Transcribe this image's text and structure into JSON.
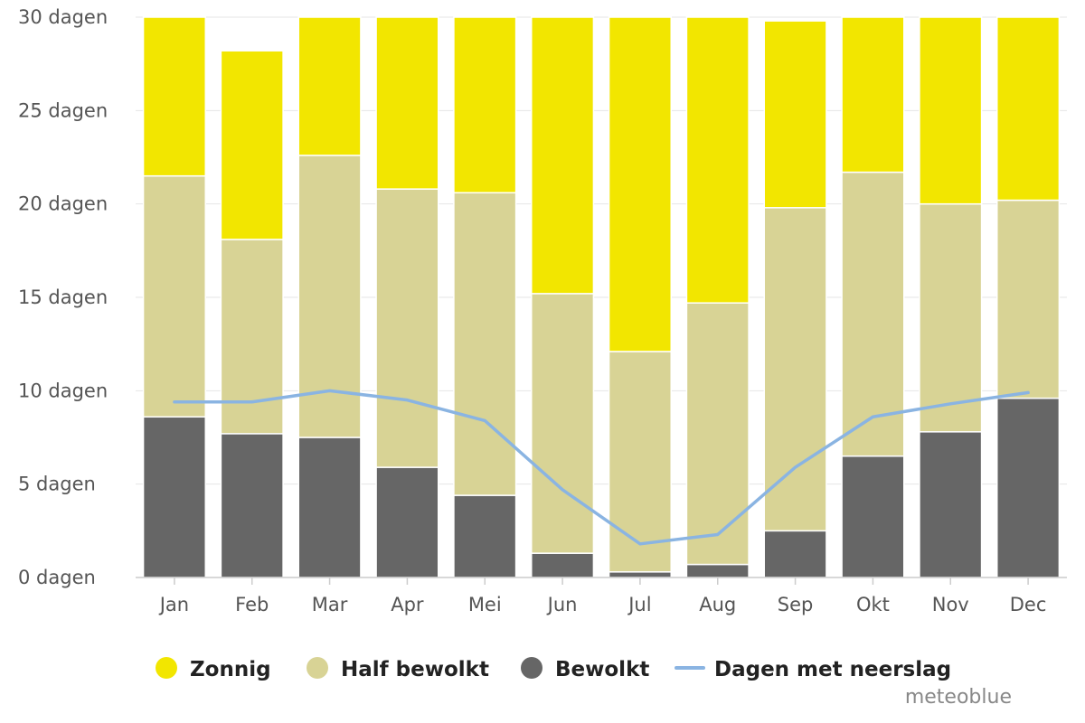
{
  "chart_data": {
    "type": "bar",
    "stacked": true,
    "categories": [
      "Jan",
      "Feb",
      "Mar",
      "Apr",
      "Mei",
      "Jun",
      "Jul",
      "Aug",
      "Sep",
      "Okt",
      "Nov",
      "Dec"
    ],
    "series": [
      {
        "name": "Bewolkt",
        "color": "#666666",
        "values": [
          8.6,
          7.7,
          7.5,
          5.9,
          4.4,
          1.3,
          0.3,
          0.7,
          2.5,
          6.5,
          7.8,
          9.6
        ]
      },
      {
        "name": "Half bewolkt",
        "color": "#d8d395",
        "values": [
          12.9,
          10.4,
          15.1,
          14.9,
          16.2,
          13.9,
          11.8,
          14.0,
          17.3,
          15.2,
          12.2,
          10.6
        ]
      },
      {
        "name": "Zonnig",
        "color": "#f2e600",
        "values": [
          8.5,
          10.1,
          7.4,
          9.2,
          9.4,
          14.8,
          17.9,
          15.3,
          10.0,
          8.3,
          10.0,
          9.8
        ]
      }
    ],
    "line_series": {
      "name": "Dagen met neerslag",
      "color": "#8ab4e2",
      "values": [
        9.4,
        9.4,
        10.0,
        9.5,
        8.4,
        4.7,
        1.8,
        2.3,
        5.9,
        8.6,
        9.3,
        9.9
      ]
    },
    "ylim": [
      0,
      30
    ],
    "yticks": [
      0,
      5,
      10,
      15,
      20,
      25,
      30
    ],
    "ytick_suffix": " dagen",
    "grid": true,
    "legend_position": "bottom"
  },
  "legend": [
    {
      "label": "Zonnig",
      "color": "#f2e600",
      "kind": "dot"
    },
    {
      "label": "Half bewolkt",
      "color": "#d8d395",
      "kind": "dot"
    },
    {
      "label": "Bewolkt",
      "color": "#666666",
      "kind": "dot"
    },
    {
      "label": "Dagen met neerslag",
      "color": "#8ab4e2",
      "kind": "line"
    }
  ],
  "credit": "meteoblue"
}
